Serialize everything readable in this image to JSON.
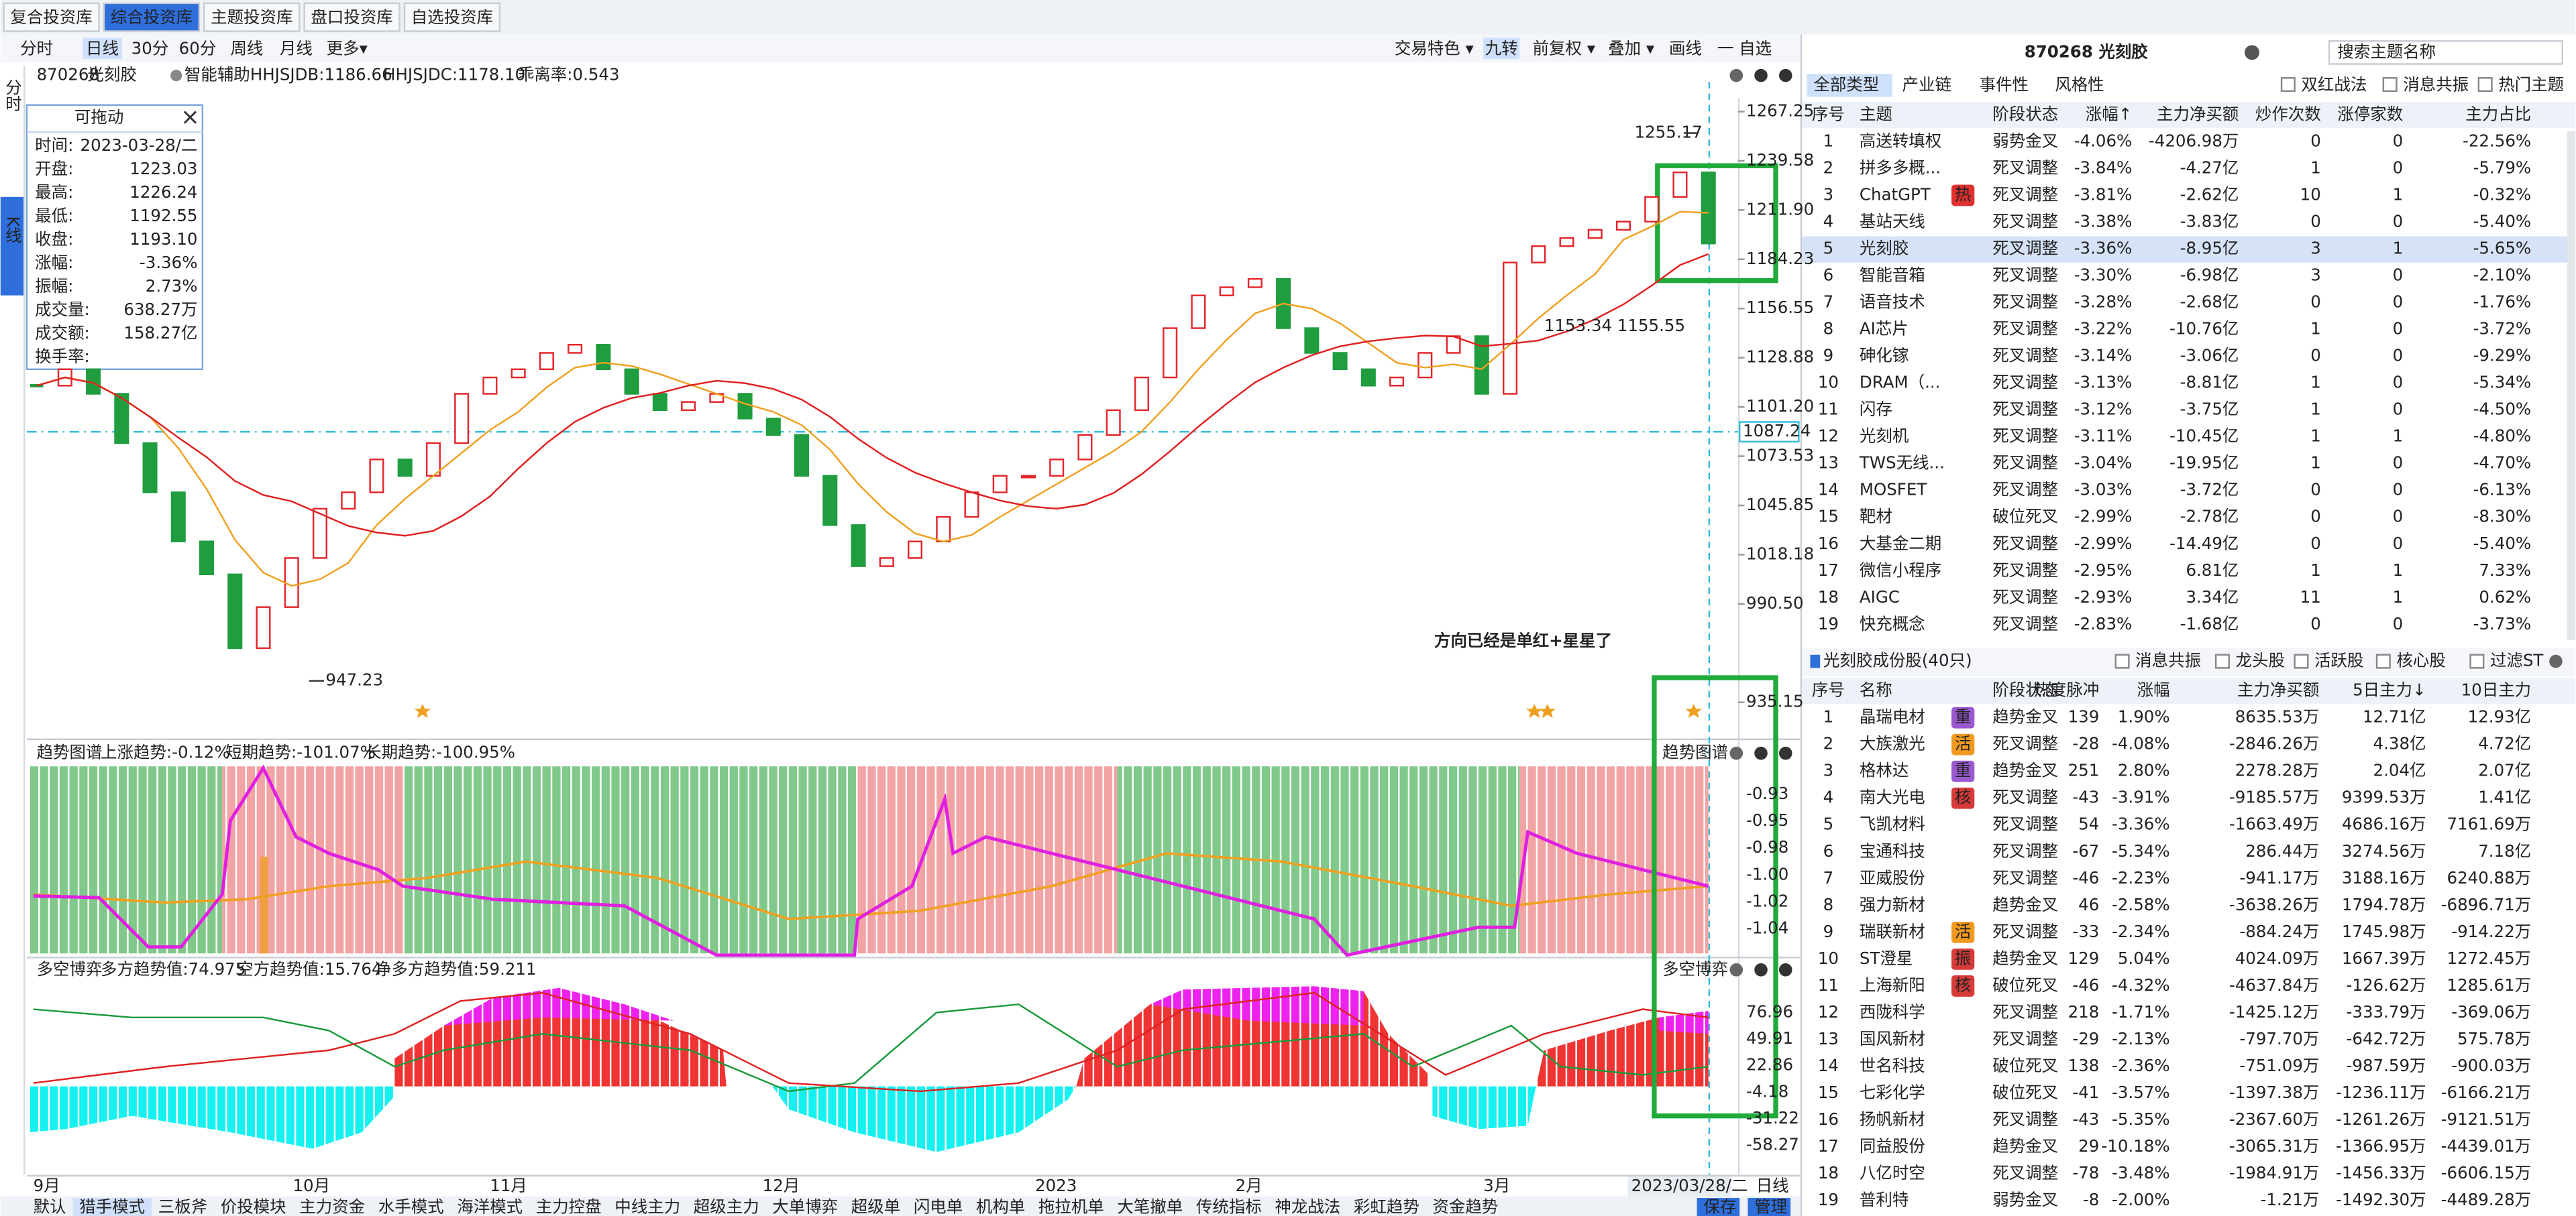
{
  "top_tabs": [
    "复合投资库",
    "综合投资库",
    "主题投资库",
    "盘口投资库",
    "自选投资库"
  ],
  "side_tabs": [
    "分时",
    "K线"
  ],
  "toolbar": {
    "periods": [
      "分时",
      "日线",
      "30分",
      "60分",
      "周线",
      "月线",
      "更多▾"
    ],
    "tools": [
      "交易特色 ▾",
      "九转",
      "前复权 ▾",
      "叠加 ▾",
      "画线",
      "一 自选"
    ]
  },
  "chart": {
    "code": "870268",
    "name": "光刻胶",
    "assist": "智能辅助",
    "hhjsjdb": "HHJSJDB:1186.66",
    "hhjsjdc": "HHJSJDC:1178.10",
    "bias": "乖离率:0.543",
    "price_ticks": [
      1267.25,
      1239.58,
      {
        "value": 1211.9,
        "label": "1211.90"
      },
      1184.23,
      1156.55,
      1128.88,
      {
        "value": 1101.2,
        "label": "1101.20"
      },
      1073.53,
      1045.85,
      1018.18,
      {
        "value": 990.5,
        "label": "990.50"
      },
      935.15
    ],
    "current_price": 1087.24,
    "high_label": "1255.17",
    "low_label": "947.23",
    "mid_label": "1153.34 1155.55",
    "callout": "方向已经是单红+星星了",
    "closes": [
      1113.2,
      1122.4,
      1108.6,
      1080.9,
      1053.2,
      1025.6,
      1007.1,
      965.6,
      988.7,
      1016.3,
      1044.0,
      1053.2,
      1071.7,
      1062.5,
      1080.9,
      1108.6,
      1117.8,
      1122.4,
      1131.6,
      1136.2,
      1122.4,
      1108.6,
      1099.4,
      1104.0,
      1108.6,
      1094.7,
      1085.5,
      1062.5,
      1034.8,
      1011.7,
      1016.3,
      1025.6,
      1039.4,
      1053.2,
      1062.5,
      1062.5,
      1071.7,
      1085.5,
      1099.4,
      1117.8,
      1145.5,
      1163.9,
      1168.5,
      1173.2,
      1145.5,
      1131.6,
      1122.4,
      1113.2,
      1117.8,
      1131.6,
      1141.0,
      1108.6,
      1182.4,
      1191.6,
      1196.2,
      1200.8,
      1205.4,
      1219.3,
      1233.1,
      1193.1
    ],
    "x_labels": [
      "9月",
      "10月",
      "11月",
      "12月",
      "2023",
      "2月",
      "3月"
    ],
    "cursor_date": "2023/03/28/二",
    "period": "日线"
  },
  "info_panel": {
    "title": "可拖动",
    "rows": [
      {
        "label": "时间:",
        "value": "2023-03-28/二"
      },
      {
        "label": "开盘:",
        "value": "1223.03"
      },
      {
        "label": "最高:",
        "value": "1226.24"
      },
      {
        "label": "最低:",
        "value": "1192.55"
      },
      {
        "label": "收盘:",
        "value": "1193.10"
      },
      {
        "label": "涨幅:",
        "value": "-3.36%"
      },
      {
        "label": "振幅:",
        "value": "2.73%"
      },
      {
        "label": "成交量:",
        "value": "638.27万"
      },
      {
        "label": "成交额:",
        "value": "158.27亿"
      },
      {
        "label": "换手率:"
      }
    ]
  },
  "trend_panel": {
    "title": "趋势图谱",
    "up": "上涨趋势:-0.12%",
    "short": "短期趋势:-101.07%",
    "long": "长期趋势:-100.95%",
    "ticks": [
      "-0.93",
      "-0.95",
      "-0.98",
      "-1.00",
      "-1.02",
      "-1.04"
    ]
  },
  "ls_panel": {
    "title": "多空博弈",
    "bull": "多方趋势值:74.975",
    "bear": "空方趋势值:15.764",
    "net": "净多方趋势值:59.211",
    "ticks": [
      "76.96",
      "49.91",
      "22.86",
      "-4.18",
      "-31.22",
      "-58.27"
    ]
  },
  "bottom_tabs": [
    "默认",
    "猎手模式",
    "三板斧",
    "价投模块",
    "主力资金",
    "水手模式",
    "海洋模式",
    "主力控盘",
    "中线主力",
    "超级主力",
    "大单博弈",
    "超级单",
    "闪电单",
    "机构单",
    "拖拉机单",
    "大笔撤单",
    "传统指标",
    "神龙战法",
    "彩虹趋势",
    "资金趋势"
  ],
  "bottom_actions": [
    "保存",
    "管理"
  ],
  "right": {
    "title": "870268 光刻胶",
    "search": "搜索主题名称",
    "filters": [
      "全部类型",
      "产业链",
      "事件性",
      "风格性"
    ],
    "checks": [
      "双红战法",
      "消息共振",
      "热门主题"
    ],
    "theme_table": {
      "headers": [
        "序号",
        "主题",
        "阶段状态",
        "涨幅↑",
        "主力净买额",
        "炒作次数",
        "涨停家数",
        "主力占比"
      ],
      "rows": [
        {
          "cells": [
            1,
            "高送转填权",
            "弱势金叉",
            "-4.06%",
            "-4206.98万",
            0,
            0,
            "-22.56%"
          ]
        },
        {
          "cells": [
            2,
            "拼多多概...",
            "死叉调整",
            "-3.84%",
            "-4.27亿",
            1,
            0,
            "-5.79%"
          ]
        },
        {
          "cells": [
            3,
            "ChatGPT",
            "死叉调整",
            "-3.81%",
            "-2.62亿",
            10,
            1,
            "-0.32%"
          ],
          "tag": "热"
        },
        {
          "cells": [
            4,
            "基站天线",
            "死叉调整",
            "-3.38%",
            "-3.83亿",
            0,
            0,
            "-5.40%"
          ]
        },
        {
          "cells": [
            5,
            "光刻胶",
            "死叉调整",
            "-3.36%",
            "-8.95亿",
            3,
            1,
            "-5.65%"
          ]
        },
        {
          "cells": [
            6,
            "智能音箱",
            "死叉调整",
            "-3.30%",
            "-6.98亿",
            3,
            0,
            "-2.10%"
          ]
        },
        {
          "cells": [
            7,
            "语音技术",
            "死叉调整",
            "-3.28%",
            "-2.68亿",
            0,
            0,
            "-1.76%"
          ]
        },
        {
          "cells": [
            8,
            "AI芯片",
            "死叉调整",
            "-3.22%",
            "-10.76亿",
            1,
            0,
            "-3.72%"
          ]
        },
        {
          "cells": [
            9,
            "砷化镓",
            "死叉调整",
            "-3.14%",
            "-3.06亿",
            0,
            0,
            "-9.29%"
          ]
        },
        {
          "cells": [
            10,
            "DRAM（...",
            "死叉调整",
            "-3.13%",
            "-8.81亿",
            1,
            0,
            "-5.34%"
          ]
        },
        {
          "cells": [
            11,
            "闪存",
            "死叉调整",
            "-3.12%",
            "-3.75亿",
            1,
            0,
            "-4.50%"
          ]
        },
        {
          "cells": [
            12,
            "光刻机",
            "死叉调整",
            "-3.11%",
            "-10.45亿",
            1,
            1,
            "-4.80%"
          ]
        },
        {
          "cells": [
            13,
            "TWS无线...",
            "死叉调整",
            "-3.04%",
            "-19.95亿",
            1,
            0,
            "-4.70%"
          ]
        },
        {
          "cells": [
            14,
            "MOSFET",
            "死叉调整",
            "-3.03%",
            "-3.72亿",
            0,
            0,
            "-6.13%"
          ]
        },
        {
          "cells": [
            15,
            "靶材",
            "破位死叉",
            "-2.99%",
            "-2.78亿",
            0,
            0,
            "-8.30%"
          ]
        },
        {
          "cells": [
            16,
            "大基金二期",
            "死叉调整",
            "-2.99%",
            "-14.49亿",
            0,
            0,
            "-5.40%"
          ]
        },
        {
          "cells": [
            17,
            "微信小程序",
            "死叉调整",
            "-2.95%",
            "6.81亿",
            1,
            1,
            "7.33%"
          ]
        },
        {
          "cells": [
            18,
            "AIGC",
            "死叉调整",
            "-2.93%",
            "3.34亿",
            11,
            1,
            "0.62%"
          ]
        },
        {
          "cells": [
            19,
            "快充概念",
            "死叉调整",
            "-2.83%",
            "-1.68亿",
            0,
            0,
            "-3.73%"
          ]
        }
      ]
    },
    "stock_title": "光刻胶成份股(40只)",
    "stock_checks": [
      "消息共振",
      "龙头股",
      "活跃股",
      "核心股",
      "过滤ST"
    ],
    "stock_table": {
      "headers": [
        "序号",
        "名称",
        "阶段状态",
        "热度脉冲",
        "涨幅",
        "主力净买额",
        "5日主力↓",
        "10日主力"
      ],
      "rows": [
        {
          "cells": [
            1,
            "晶瑞电材",
            "趋势金叉",
            139,
            "1.90%",
            "8635.53万",
            "12.71亿",
            "12.93亿"
          ],
          "tag": "重"
        },
        {
          "cells": [
            2,
            "大族激光",
            "死叉调整",
            -28,
            "-4.08%",
            "-2846.26万",
            "4.38亿",
            "4.72亿"
          ],
          "tag": "活"
        },
        {
          "cells": [
            3,
            "格林达",
            "趋势金叉",
            251,
            "2.80%",
            "2278.28万",
            "2.04亿",
            "2.07亿"
          ],
          "tag": "重"
        },
        {
          "cells": [
            4,
            "南大光电",
            "死叉调整",
            -43,
            "-3.91%",
            "-9185.57万",
            "9399.53万",
            "1.41亿"
          ],
          "tag": "核"
        },
        {
          "cells": [
            5,
            "飞凯材料",
            "死叉调整",
            54,
            "-3.36%",
            "-1663.49万",
            "4686.16万",
            "7161.69万"
          ]
        },
        {
          "cells": [
            6,
            "宝通科技",
            "死叉调整",
            -67,
            "-5.34%",
            "286.44万",
            "3274.56万",
            "7.18亿"
          ]
        },
        {
          "cells": [
            7,
            "亚威股份",
            "死叉调整",
            -46,
            "-2.23%",
            "-941.17万",
            "3188.16万",
            "6240.88万"
          ]
        },
        {
          "cells": [
            8,
            "强力新材",
            "趋势金叉",
            46,
            "-2.58%",
            "-3638.26万",
            "1794.78万",
            "-6896.71万"
          ]
        },
        {
          "cells": [
            9,
            "瑞联新材",
            "死叉调整",
            -33,
            "-2.34%",
            "-884.24万",
            "1745.98万",
            "-914.22万"
          ],
          "tag": "活"
        },
        {
          "cells": [
            10,
            "ST澄星",
            "趋势金叉",
            129,
            "5.04%",
            "4024.09万",
            "1667.39万",
            "1272.45万"
          ],
          "tag": "振"
        },
        {
          "cells": [
            11,
            "上海新阳",
            "破位死叉",
            -46,
            "-4.32%",
            "-4637.84万",
            "-126.62万",
            "1285.61万"
          ],
          "tag": "核"
        },
        {
          "cells": [
            12,
            "西陇科学",
            "死叉调整",
            218,
            "-1.71%",
            "-1425.12万",
            "-333.79万",
            "-369.06万"
          ]
        },
        {
          "cells": [
            13,
            "国风新材",
            "死叉调整",
            -29,
            "-2.13%",
            "-797.70万",
            "-642.72万",
            "575.78万"
          ]
        },
        {
          "cells": [
            14,
            "世名科技",
            "破位死叉",
            138,
            "-2.36%",
            "-751.09万",
            "-987.59万",
            "-900.03万"
          ]
        },
        {
          "cells": [
            15,
            "七彩化学",
            "破位死叉",
            -41,
            "-3.57%",
            "-1397.38万",
            "-1236.11万",
            "-6166.21万"
          ]
        },
        {
          "cells": [
            16,
            "扬帆新材",
            "死叉调整",
            -43,
            "-5.35%",
            "-2367.60万",
            "-1261.26万",
            "-9121.51万"
          ]
        },
        {
          "cells": [
            17,
            "同益股份",
            "趋势金叉",
            29,
            "-10.18%",
            "-3065.31万",
            "-1366.95万",
            "-4439.01万"
          ]
        },
        {
          "cells": [
            18,
            "八亿时空",
            "死叉调整",
            -78,
            "-3.48%",
            "-1984.91万",
            "-1456.33万",
            "-6606.15万"
          ]
        },
        {
          "cells": [
            19,
            "普利特",
            "弱势金叉",
            -8,
            "-2.00%",
            "-1.21万",
            "-1492.30万",
            "-4489.28万"
          ]
        }
      ]
    }
  }
}
